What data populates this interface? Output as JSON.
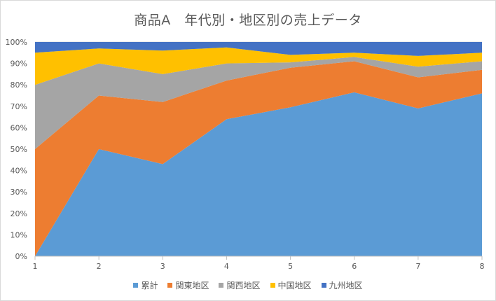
{
  "chart_data": {
    "type": "area",
    "stacked": true,
    "title": "商品A　年代別・地区別の売上データ",
    "x": [
      1,
      2,
      3,
      4,
      5,
      6,
      7,
      8
    ],
    "ylim": [
      0,
      100
    ],
    "y_ticks": [
      "0%",
      "10%",
      "20%",
      "30%",
      "40%",
      "50%",
      "60%",
      "70%",
      "80%",
      "90%",
      "100%"
    ],
    "series": [
      {
        "name": "累計",
        "color": "#5b9bd5",
        "values": [
          0,
          50,
          43,
          64,
          69.5,
          76.5,
          69,
          76
        ]
      },
      {
        "name": "関東地区",
        "color": "#ed7d31",
        "values": [
          50,
          25,
          29,
          18,
          18.5,
          14.5,
          14.5,
          11
        ]
      },
      {
        "name": "関西地区",
        "color": "#a5a5a5",
        "values": [
          30,
          15,
          13,
          8,
          2.5,
          2,
          5,
          4
        ]
      },
      {
        "name": "中国地区",
        "color": "#ffc000",
        "values": [
          15,
          7,
          11,
          7.5,
          3.5,
          2,
          5,
          4
        ]
      },
      {
        "name": "九州地区",
        "color": "#4472c4",
        "values": [
          5,
          3,
          4,
          2.5,
          6,
          5,
          6.5,
          5
        ]
      }
    ],
    "grid": true,
    "legend_position": "bottom"
  }
}
